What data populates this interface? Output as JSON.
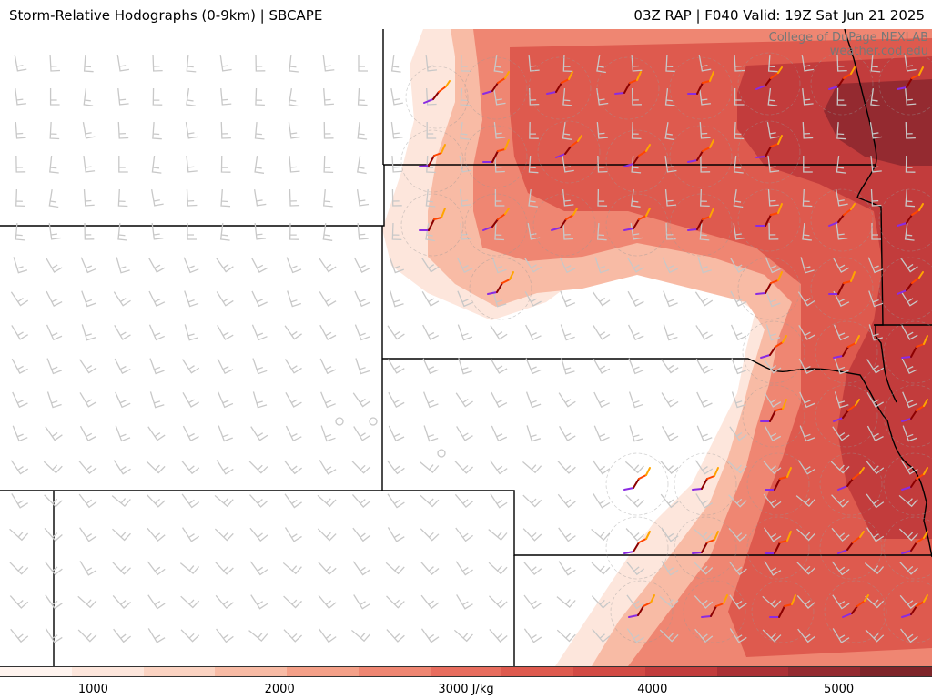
{
  "header": {
    "left_title": "Storm-Relative Hodographs (0-9km) | SBCAPE",
    "right_title": "03Z RAP | F040 Valid: 19Z Sat Jun 21 2025"
  },
  "credit": {
    "line1": "College of DuPage NEXLAB",
    "line2": "weather.cod.edu"
  },
  "colorbar": {
    "tick_labels": [
      "1000",
      "2000",
      "3000 J/kg",
      "4000",
      "5000"
    ],
    "tick_values": [
      1000,
      2000,
      3000,
      4000,
      5000
    ],
    "min": 500,
    "max": 5500,
    "colors": [
      "#fff4ef",
      "#fde6dc",
      "#fbd3c2",
      "#f8bba5",
      "#f4a088",
      "#ef8672",
      "#e86d5e",
      "#de5a4e",
      "#d24a44",
      "#c23c3c",
      "#ab3035",
      "#942a30",
      "#7e2429"
    ]
  },
  "map": {
    "field": "SBCAPE",
    "overlay": "Storm-Relative Hodographs (0-9km)",
    "hodograph_colors": [
      "#8a2be2",
      "#8b0000",
      "#ff4500",
      "#ffa500"
    ],
    "background_barb_color": "#c8c8c8",
    "boundary_color": "#000000"
  }
}
